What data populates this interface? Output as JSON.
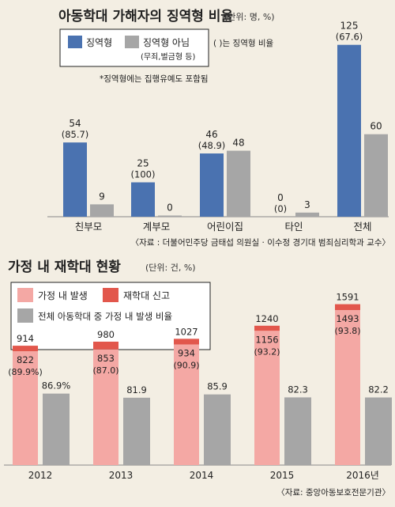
{
  "chart_data": [
    {
      "type": "bar",
      "title": "아동학대 가해자의 징역형 비율",
      "unit": "(단위: 명, %)",
      "categories": [
        "친부모",
        "계부모",
        "어린이집",
        "타인",
        "전체"
      ],
      "series": [
        {
          "name": "징역형",
          "values": [
            54,
            25,
            46,
            0,
            125
          ],
          "color": "#4a72b0"
        },
        {
          "name": "징역형 아님",
          "name_sub": "(무죄,벌금형 등)",
          "values": [
            9,
            0,
            48,
            3,
            60
          ],
          "color": "#a6a6a6"
        }
      ],
      "percent_labels": [
        "(85.7)",
        "(100)",
        "(48.9)",
        "(0)",
        "(67.6)"
      ],
      "legend_note": "( )는 징역형 비율",
      "footnote": "*징역형에는 집행유예도 포함됨",
      "source": "〈자료 : 더불어민주당 금태섭 의원실 · 이수정 경기대 범죄심리학과 교수〉",
      "ylim": [
        0,
        130
      ]
    },
    {
      "type": "bar",
      "title": "가정 내 재학대 현황",
      "unit": "(단위: 건, %)",
      "categories": [
        "2012",
        "2013",
        "2014",
        "2015",
        "2016년"
      ],
      "series": [
        {
          "name": "가정 내 발생",
          "values": [
            822,
            853,
            934,
            1156,
            1493
          ],
          "color": "#f4a8a4"
        },
        {
          "name": "재학대 신고",
          "values": [
            914,
            980,
            1027,
            1240,
            1591
          ],
          "color": "#e2574c"
        },
        {
          "name": "전체 아동학대 중 가정 내 발생 비율",
          "values": [
            86.9,
            81.9,
            85.9,
            82.3,
            82.2
          ],
          "color": "#a6a6a6"
        }
      ],
      "inner_percent_labels": [
        "(89.9%)",
        "(87.0)",
        "(90.9)",
        "(93.2)",
        "(93.8)"
      ],
      "percent_value_labels": [
        "86.9%",
        "81.9",
        "85.9",
        "82.3",
        "82.2"
      ],
      "source": "〈자료: 중앙아동보호전문기관〉",
      "ylim": [
        0,
        1650
      ]
    }
  ]
}
